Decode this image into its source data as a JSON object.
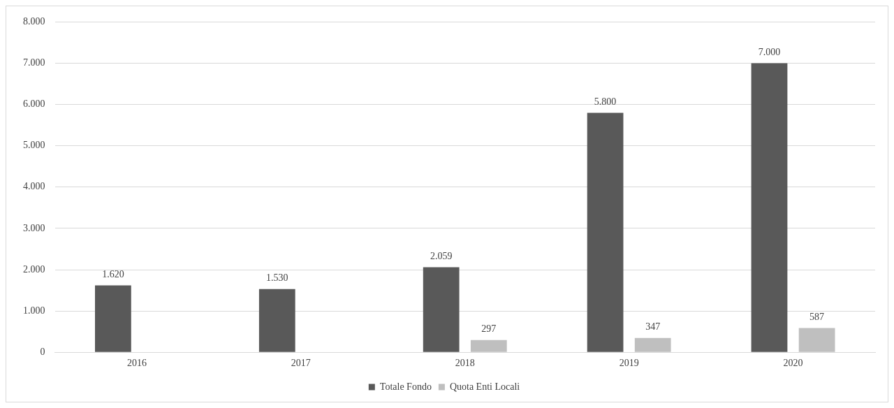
{
  "chart_data": {
    "type": "bar",
    "categories": [
      "2016",
      "2017",
      "2018",
      "2019",
      "2020"
    ],
    "series": [
      {
        "name": "Totale Fondo",
        "color": "#595959",
        "values": [
          1620,
          1530,
          2059,
          5800,
          7000
        ],
        "value_labels": [
          "1.620",
          "1.530",
          "2.059",
          "5.800",
          "7.000"
        ]
      },
      {
        "name": "Quota Enti Locali",
        "color": "#bfbfbf",
        "values": [
          null,
          null,
          297,
          347,
          587
        ],
        "value_labels": [
          null,
          null,
          "297",
          "347",
          "587"
        ]
      }
    ],
    "ylim": [
      0,
      8000
    ],
    "yticks": [
      {
        "value": 0,
        "label": "0"
      },
      {
        "value": 1000,
        "label": "1.000"
      },
      {
        "value": 2000,
        "label": "2.000"
      },
      {
        "value": 3000,
        "label": "3.000"
      },
      {
        "value": 4000,
        "label": "4.000"
      },
      {
        "value": 5000,
        "label": "5.000"
      },
      {
        "value": 6000,
        "label": "6.000"
      },
      {
        "value": 7000,
        "label": "7.000"
      },
      {
        "value": 8000,
        "label": "8.000"
      }
    ],
    "grid": "y",
    "legend": "bottom"
  }
}
